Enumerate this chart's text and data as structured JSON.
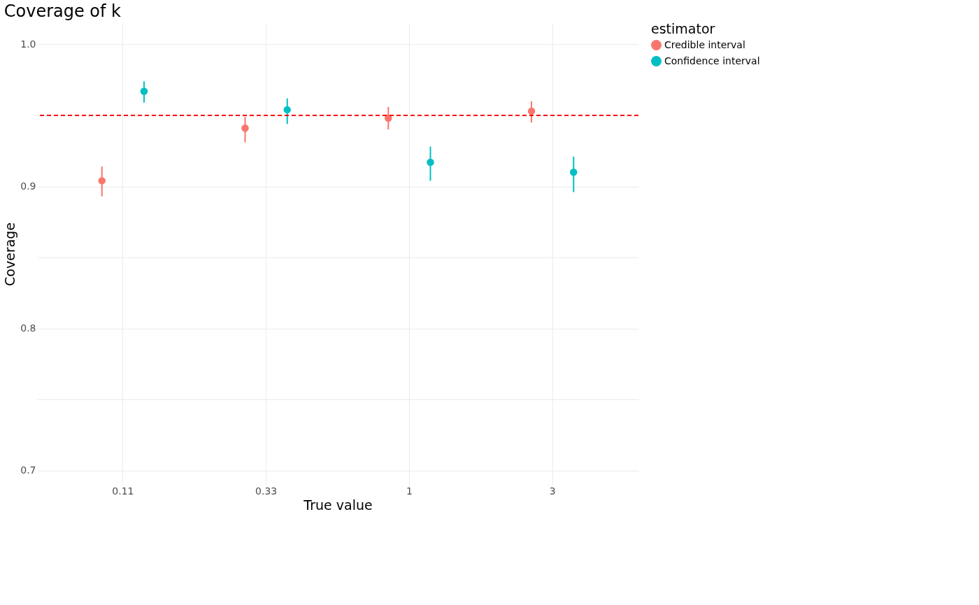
{
  "chart_data": {
    "type": "scatter",
    "title": "Coverage of k",
    "xlabel": "True value",
    "ylabel": "Coverage",
    "legend_title": "estimator",
    "categories": [
      "0.11",
      "0.33",
      "1",
      "3"
    ],
    "series": [
      {
        "name": "Credible interval",
        "color": "#f8766d",
        "values": [
          0.904,
          0.941,
          0.948,
          0.953
        ],
        "errors": [
          [
            0.893,
            0.914
          ],
          [
            0.931,
            0.949
          ],
          [
            0.94,
            0.956
          ],
          [
            0.945,
            0.96
          ]
        ]
      },
      {
        "name": "Confidence interval",
        "color": "#00bfc4",
        "values": [
          0.967,
          0.954,
          0.917,
          0.91
        ],
        "errors": [
          [
            0.959,
            0.974
          ],
          [
            0.944,
            0.962
          ],
          [
            0.904,
            0.928
          ],
          [
            0.896,
            0.921
          ]
        ]
      }
    ],
    "ylim": [
      0.69,
      1.015
    ],
    "yticks": [
      0.7,
      {
        "value": 0.75,
        "label": null
      },
      0.8,
      {
        "value": 0.85,
        "label": null
      },
      0.9,
      {
        "value": 0.95,
        "label": null
      },
      {
        "value": 1,
        "label": "1.0"
      }
    ],
    "ref_lines": [
      {
        "axis": "y",
        "value": 0.95,
        "color": "#ff0000",
        "line_style": "dashed"
      }
    ],
    "grid": true,
    "legend": "right",
    "marker": "circle"
  }
}
